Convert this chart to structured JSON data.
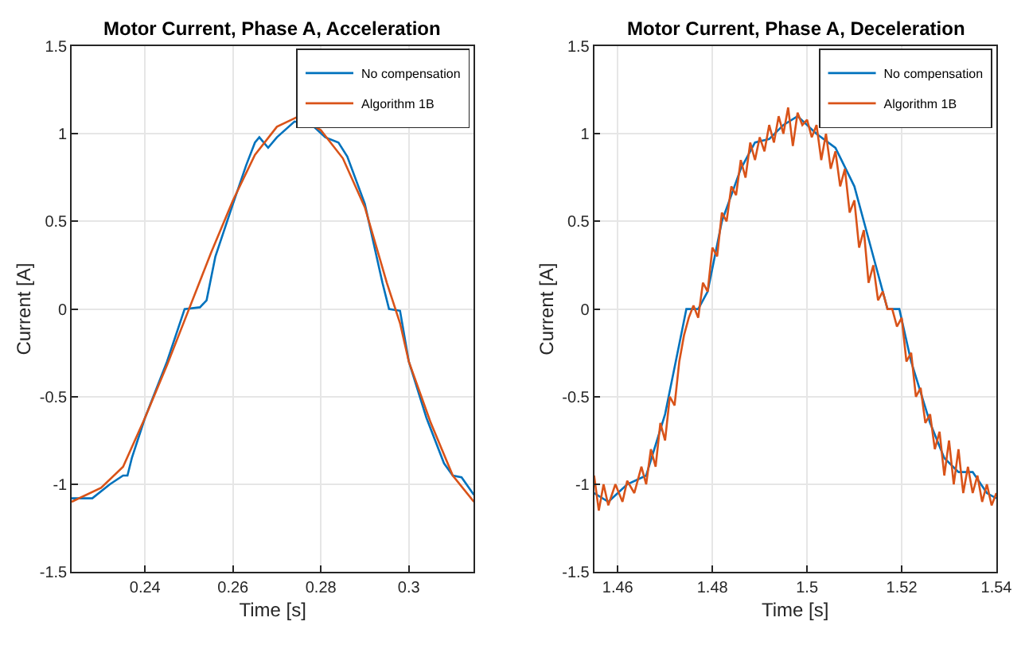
{
  "chart_data": [
    {
      "type": "line",
      "title": "Motor Current, Phase A, Acceleration",
      "xlabel": "Time [s]",
      "ylabel": "Current [A]",
      "xlim": [
        0.2233,
        0.3148
      ],
      "xticks": [
        0.24,
        0.26,
        0.28,
        0.3
      ],
      "ylim": [
        -1.5,
        1.5
      ],
      "yticks": [
        -1.5,
        -1,
        -0.5,
        0,
        0.5,
        1,
        1.5
      ],
      "grid": true,
      "legend": "top right",
      "series": [
        {
          "name": "No compensation",
          "color": "#0072bd",
          "x": [
            0.2233,
            0.228,
            0.232,
            0.235,
            0.236,
            0.237,
            0.24,
            0.245,
            0.249,
            0.2525,
            0.254,
            0.256,
            0.26,
            0.263,
            0.265,
            0.266,
            0.268,
            0.27,
            0.274,
            0.278,
            0.281,
            0.284,
            0.286,
            0.29,
            0.294,
            0.2955,
            0.298,
            0.3,
            0.304,
            0.308,
            0.31,
            0.312,
            0.3148
          ],
          "values": [
            -1.08,
            -1.08,
            -1.0,
            -0.95,
            -0.95,
            -0.85,
            -0.62,
            -0.3,
            0.0,
            0.01,
            0.05,
            0.3,
            0.6,
            0.82,
            0.95,
            0.98,
            0.92,
            0.98,
            1.07,
            1.05,
            0.98,
            0.95,
            0.87,
            0.6,
            0.15,
            0.0,
            -0.01,
            -0.3,
            -0.62,
            -0.88,
            -0.95,
            -0.96,
            -1.06
          ]
        },
        {
          "name": "Algorithm 1B",
          "color": "#d95319",
          "x": [
            0.2233,
            0.23,
            0.235,
            0.24,
            0.245,
            0.25,
            0.255,
            0.26,
            0.265,
            0.27,
            0.275,
            0.28,
            0.285,
            0.29,
            0.295,
            0.298,
            0.3,
            0.305,
            0.31,
            0.3148
          ],
          "values": [
            -1.1,
            -1.02,
            -0.9,
            -0.62,
            -0.32,
            0.0,
            0.32,
            0.62,
            0.88,
            1.04,
            1.1,
            1.02,
            0.86,
            0.58,
            0.15,
            -0.08,
            -0.3,
            -0.65,
            -0.95,
            -1.1
          ]
        }
      ]
    },
    {
      "type": "line",
      "title": "Motor Current, Phase A, Deceleration",
      "xlabel": "Time [s]",
      "ylabel": "Current [A]",
      "xlim": [
        1.455,
        1.54
      ],
      "xticks": [
        1.46,
        1.48,
        1.5,
        1.52,
        1.54
      ],
      "ylim": [
        -1.5,
        1.5
      ],
      "yticks": [
        -1.5,
        -1,
        -0.5,
        0,
        0.5,
        1,
        1.5
      ],
      "grid": true,
      "legend": "top right",
      "series": [
        {
          "name": "No compensation",
          "color": "#0072bd",
          "x": [
            1.455,
            1.458,
            1.462,
            1.466,
            1.47,
            1.473,
            1.4745,
            1.477,
            1.479,
            1.482,
            1.486,
            1.489,
            1.492,
            1.495,
            1.498,
            1.502,
            1.506,
            1.51,
            1.514,
            1.517,
            1.5195,
            1.522,
            1.526,
            1.529,
            1.532,
            1.535,
            1.538,
            1.54
          ],
          "values": [
            -1.05,
            -1.1,
            -1.0,
            -0.95,
            -0.6,
            -0.2,
            0.0,
            0.0,
            0.1,
            0.5,
            0.8,
            0.95,
            0.97,
            1.05,
            1.1,
            1.0,
            0.92,
            0.7,
            0.3,
            0.0,
            0.0,
            -0.3,
            -0.65,
            -0.85,
            -0.93,
            -0.93,
            -1.05,
            -1.08
          ]
        },
        {
          "name": "Algorithm 1B",
          "color": "#d95319",
          "x": [
            1.455,
            1.456,
            1.457,
            1.458,
            1.4595,
            1.461,
            1.462,
            1.4635,
            1.465,
            1.466,
            1.467,
            1.468,
            1.469,
            1.47,
            1.471,
            1.472,
            1.473,
            1.474,
            1.475,
            1.476,
            1.477,
            1.478,
            1.479,
            1.48,
            1.481,
            1.482,
            1.483,
            1.484,
            1.485,
            1.486,
            1.487,
            1.488,
            1.489,
            1.49,
            1.491,
            1.492,
            1.493,
            1.494,
            1.495,
            1.496,
            1.497,
            1.498,
            1.499,
            1.5,
            1.501,
            1.502,
            1.503,
            1.504,
            1.505,
            1.506,
            1.507,
            1.508,
            1.509,
            1.51,
            1.511,
            1.512,
            1.513,
            1.514,
            1.515,
            1.516,
            1.517,
            1.518,
            1.519,
            1.52,
            1.521,
            1.522,
            1.523,
            1.524,
            1.525,
            1.526,
            1.527,
            1.528,
            1.529,
            1.53,
            1.531,
            1.532,
            1.533,
            1.534,
            1.535,
            1.536,
            1.537,
            1.538,
            1.539,
            1.54
          ],
          "values": [
            -0.95,
            -1.15,
            -1.0,
            -1.12,
            -1.0,
            -1.1,
            -0.98,
            -1.05,
            -0.9,
            -1.0,
            -0.8,
            -0.9,
            -0.65,
            -0.75,
            -0.5,
            -0.55,
            -0.3,
            -0.15,
            -0.05,
            0.02,
            -0.05,
            0.15,
            0.1,
            0.35,
            0.3,
            0.55,
            0.5,
            0.7,
            0.65,
            0.85,
            0.75,
            0.95,
            0.85,
            0.98,
            0.9,
            1.05,
            0.95,
            1.1,
            1.0,
            1.15,
            0.93,
            1.12,
            1.05,
            1.08,
            0.98,
            1.05,
            0.85,
            1.0,
            0.8,
            0.9,
            0.7,
            0.8,
            0.55,
            0.62,
            0.35,
            0.45,
            0.15,
            0.25,
            0.05,
            0.1,
            0.0,
            0.0,
            -0.1,
            -0.05,
            -0.3,
            -0.25,
            -0.5,
            -0.45,
            -0.65,
            -0.6,
            -0.8,
            -0.7,
            -0.95,
            -0.75,
            -1.0,
            -0.8,
            -1.05,
            -0.9,
            -1.05,
            -0.95,
            -1.1,
            -1.0,
            -1.12,
            -1.05
          ]
        }
      ]
    }
  ]
}
